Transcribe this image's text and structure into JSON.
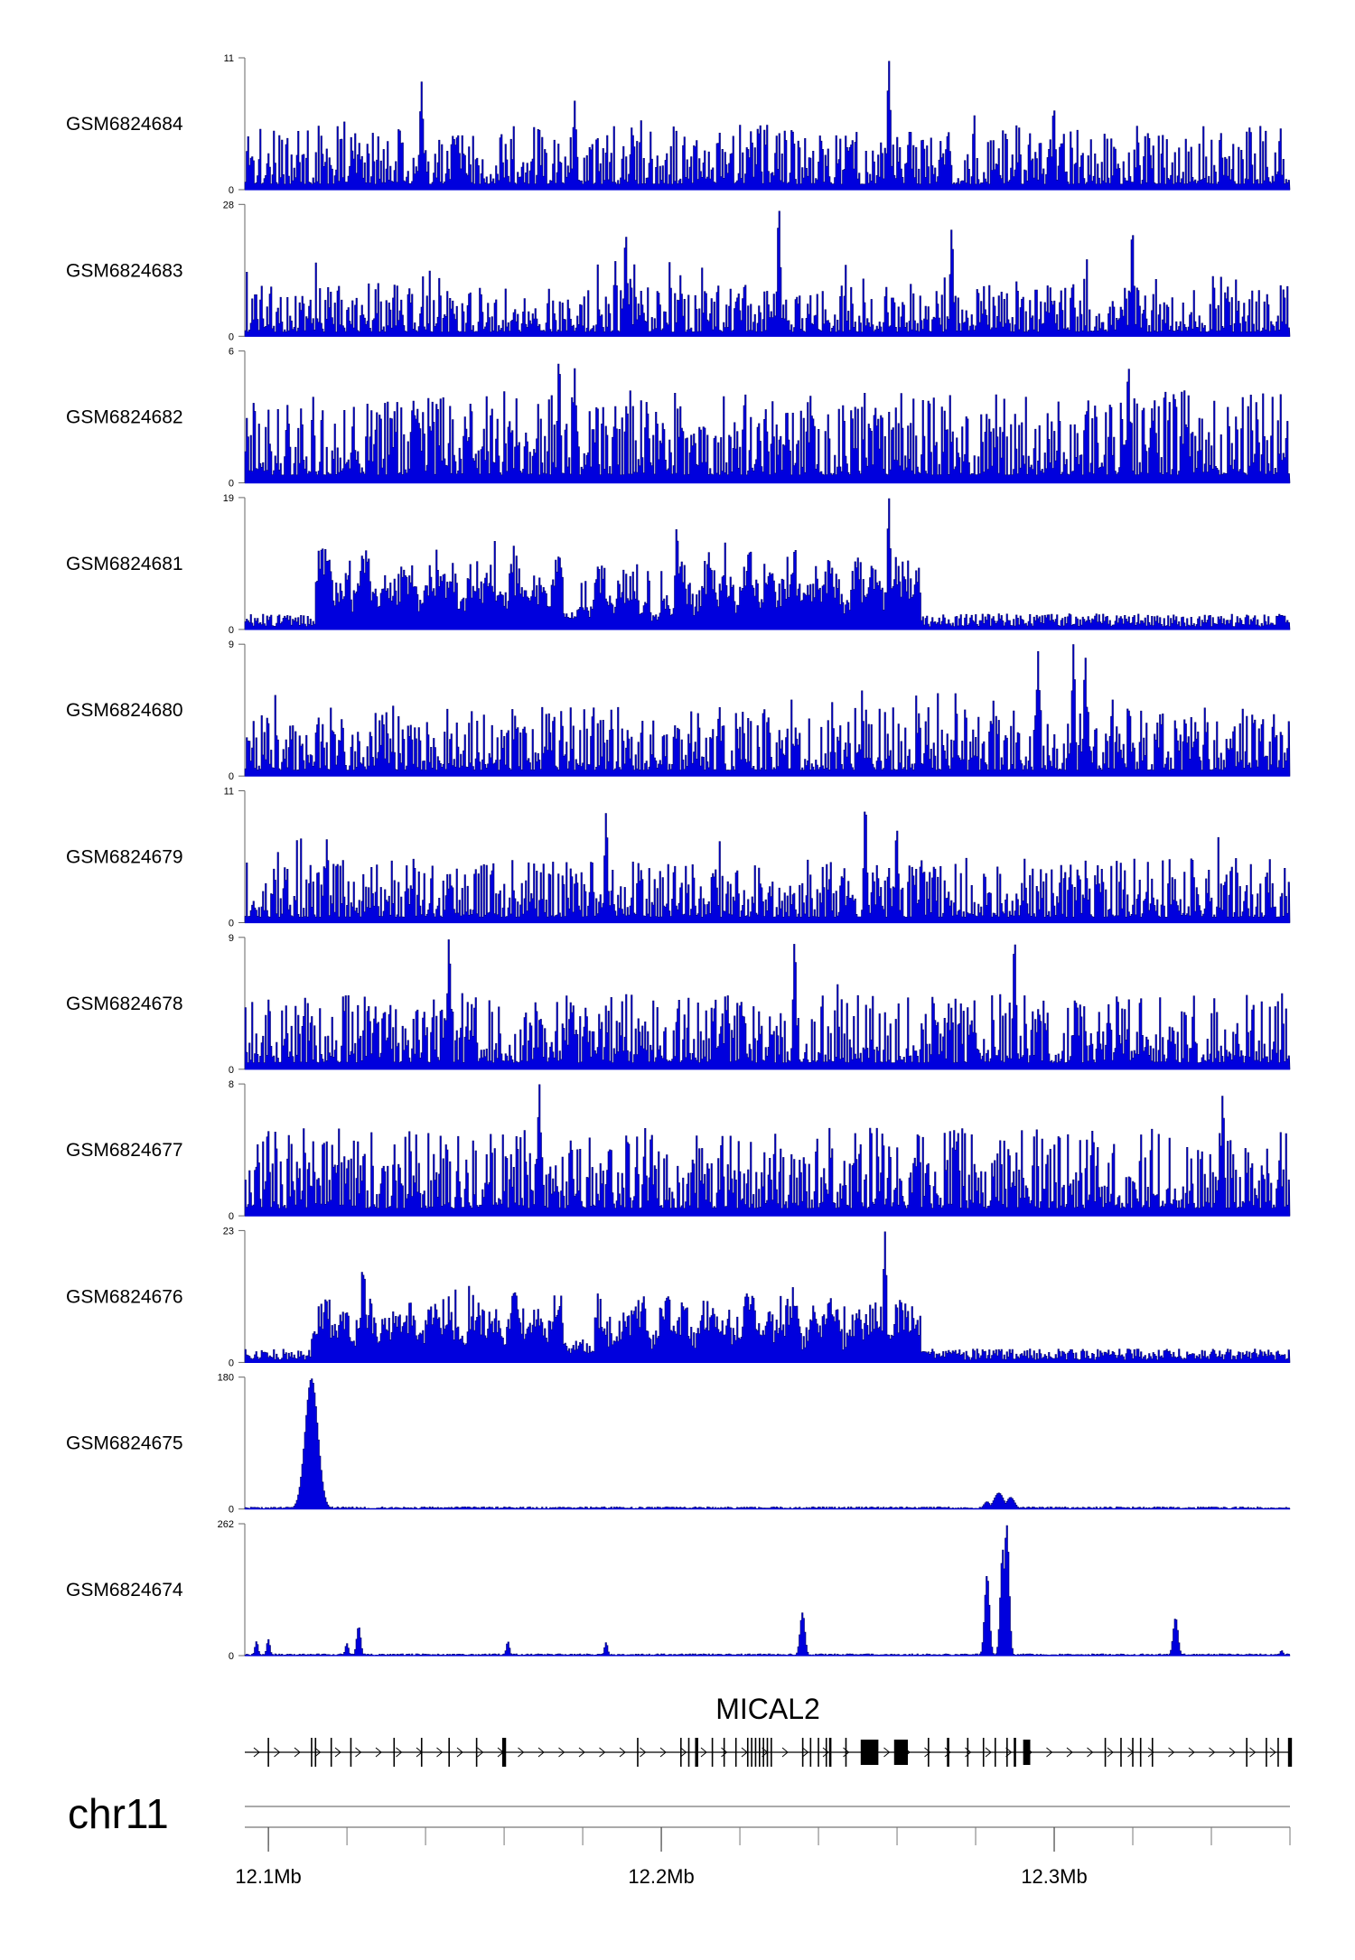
{
  "chart_data": {
    "type": "area",
    "chromosome": "chr11",
    "x_range": [
      12.094,
      12.36
    ],
    "x_unit": "Mb",
    "x_ticks": [
      {
        "value": 12.1,
        "label": "12.1Mb"
      },
      {
        "value": 12.2,
        "label": "12.2Mb"
      },
      {
        "value": 12.3,
        "label": "12.3Mb"
      }
    ],
    "color": "#0000dd",
    "outline_color": "#000066",
    "tracks": [
      {
        "name": "GSM6824684",
        "ymax": 11,
        "ymax_label": "11",
        "ymin_label": "0",
        "pattern": "noise",
        "base": 0.28,
        "spread": 0.35,
        "peaks": [
          {
            "x": 12.139,
            "y": 9.0
          },
          {
            "x": 12.258,
            "y": 10.8
          },
          {
            "x": 12.178,
            "y": 7.4
          },
          {
            "x": 12.3,
            "y": 7.0
          }
        ]
      },
      {
        "name": "GSM6824683",
        "ymax": 28,
        "ymax_label": "28",
        "ymin_label": "0",
        "pattern": "noise",
        "base": 0.22,
        "spread": 0.35,
        "peaks": [
          {
            "x": 12.23,
            "y": 27.5
          },
          {
            "x": 12.191,
            "y": 22.0
          },
          {
            "x": 12.274,
            "y": 23.0
          },
          {
            "x": 12.32,
            "y": 23.0
          }
        ]
      },
      {
        "name": "GSM6824682",
        "ymax": 6,
        "ymax_label": "6",
        "ymin_label": "0",
        "pattern": "noise",
        "base": 0.4,
        "spread": 0.35,
        "peaks": [
          {
            "x": 12.174,
            "y": 5.7
          },
          {
            "x": 12.178,
            "y": 5.2
          },
          {
            "x": 12.319,
            "y": 5.4
          }
        ]
      },
      {
        "name": "GSM6824681",
        "ymax": 19,
        "ymax_label": "19",
        "ymin_label": "0",
        "pattern": "domain",
        "base": 0.07,
        "domain": {
          "start": 12.112,
          "end": 12.266,
          "level": 0.5,
          "dips": [
            {
              "start": 12.175,
              "end": 12.183
            },
            {
              "start": 12.194,
              "end": 12.204
            }
          ]
        },
        "peaks": [
          {
            "x": 12.258,
            "y": 19.0
          },
          {
            "x": 12.204,
            "y": 15.0
          }
        ]
      },
      {
        "name": "GSM6824680",
        "ymax": 9,
        "ymax_label": "9",
        "ymin_label": "0",
        "pattern": "noise",
        "base": 0.3,
        "spread": 0.35,
        "peaks": [
          {
            "x": 12.305,
            "y": 9.0
          },
          {
            "x": 12.308,
            "y": 8.2
          },
          {
            "x": 12.296,
            "y": 8.5
          }
        ]
      },
      {
        "name": "GSM6824679",
        "ymax": 11,
        "ymax_label": "11",
        "ymin_label": "0",
        "pattern": "noise",
        "base": 0.28,
        "spread": 0.35,
        "peaks": [
          {
            "x": 12.186,
            "y": 9.2
          },
          {
            "x": 12.252,
            "y": 10.0
          },
          {
            "x": 12.26,
            "y": 8.0
          }
        ]
      },
      {
        "name": "GSM6824678",
        "ymax": 9,
        "ymax_label": "9",
        "ymin_label": "0",
        "pattern": "noise",
        "base": 0.33,
        "spread": 0.35,
        "peaks": [
          {
            "x": 12.146,
            "y": 9.0
          },
          {
            "x": 12.234,
            "y": 8.8
          },
          {
            "x": 12.29,
            "y": 9.0
          }
        ]
      },
      {
        "name": "GSM6824677",
        "ymax": 8,
        "ymax_label": "8",
        "ymin_label": "0",
        "pattern": "noise",
        "base": 0.38,
        "spread": 0.35,
        "peaks": [
          {
            "x": 12.169,
            "y": 8.0
          },
          {
            "x": 12.343,
            "y": 7.4
          }
        ]
      },
      {
        "name": "GSM6824676",
        "ymax": 23,
        "ymax_label": "23",
        "ymin_label": "0",
        "pattern": "domain",
        "base": 0.06,
        "domain": {
          "start": 12.111,
          "end": 12.266,
          "level": 0.45,
          "dips": [
            {
              "start": 12.175,
              "end": 12.183
            }
          ]
        },
        "peaks": [
          {
            "x": 12.257,
            "y": 22.8
          },
          {
            "x": 12.124,
            "y": 17.0
          }
        ]
      },
      {
        "name": "GSM6824675",
        "ymax": 180,
        "ymax_label": "180",
        "ymin_label": "0",
        "pattern": "sparse",
        "base": 0.012,
        "peaks": [
          {
            "x": 12.111,
            "y": 178,
            "w": 0.0016
          },
          {
            "x": 12.286,
            "y": 22,
            "w": 0.0012
          },
          {
            "x": 12.289,
            "y": 16,
            "w": 0.001
          },
          {
            "x": 12.283,
            "y": 10,
            "w": 0.0008
          }
        ]
      },
      {
        "name": "GSM6824674",
        "ymax": 262,
        "ymax_label": "262",
        "ymin_label": "0",
        "pattern": "sparse",
        "base": 0.01,
        "peaks": [
          {
            "x": 12.288,
            "y": 260,
            "w": 0.0006
          },
          {
            "x": 12.287,
            "y": 210,
            "w": 0.0006
          },
          {
            "x": 12.283,
            "y": 160,
            "w": 0.0006
          },
          {
            "x": 12.236,
            "y": 85,
            "w": 0.0006
          },
          {
            "x": 12.331,
            "y": 75,
            "w": 0.0006
          },
          {
            "x": 12.123,
            "y": 58,
            "w": 0.0005
          },
          {
            "x": 12.1,
            "y": 32,
            "w": 0.0004
          },
          {
            "x": 12.097,
            "y": 28,
            "w": 0.0004
          },
          {
            "x": 12.12,
            "y": 24,
            "w": 0.0004
          },
          {
            "x": 12.161,
            "y": 28,
            "w": 0.0004
          },
          {
            "x": 12.186,
            "y": 26,
            "w": 0.0004
          },
          {
            "x": 12.358,
            "y": 10,
            "w": 0.0004
          }
        ]
      }
    ],
    "gene": {
      "name": "MICAL2",
      "strand": "+",
      "start": 12.094,
      "end": 12.36,
      "exons": [
        {
          "x": 12.1,
          "w": 0.0003
        },
        {
          "x": 12.111,
          "w": 0.0003
        },
        {
          "x": 12.112,
          "w": 0.0003
        },
        {
          "x": 12.116,
          "w": 0.0003
        },
        {
          "x": 12.121,
          "w": 0.0003
        },
        {
          "x": 12.132,
          "w": 0.0003
        },
        {
          "x": 12.139,
          "w": 0.0003
        },
        {
          "x": 12.146,
          "w": 0.0003
        },
        {
          "x": 12.153,
          "w": 0.0003
        },
        {
          "x": 12.16,
          "w": 0.001
        },
        {
          "x": 12.194,
          "w": 0.0003
        },
        {
          "x": 12.205,
          "w": 0.0003
        },
        {
          "x": 12.207,
          "w": 0.0003
        },
        {
          "x": 12.209,
          "w": 0.0008
        },
        {
          "x": 12.213,
          "w": 0.0003
        },
        {
          "x": 12.216,
          "w": 0.0003
        },
        {
          "x": 12.219,
          "w": 0.0003
        },
        {
          "x": 12.222,
          "w": 0.0003
        },
        {
          "x": 12.223,
          "w": 0.0003
        },
        {
          "x": 12.224,
          "w": 0.0003
        },
        {
          "x": 12.225,
          "w": 0.0003
        },
        {
          "x": 12.226,
          "w": 0.0003
        },
        {
          "x": 12.227,
          "w": 0.0003
        },
        {
          "x": 12.228,
          "w": 0.0003
        },
        {
          "x": 12.236,
          "w": 0.0003
        },
        {
          "x": 12.238,
          "w": 0.0003
        },
        {
          "x": 12.24,
          "w": 0.0003
        },
        {
          "x": 12.242,
          "w": 0.0003
        },
        {
          "x": 12.243,
          "w": 0.0006
        },
        {
          "x": 12.247,
          "w": 0.0003
        },
        {
          "x": 12.253,
          "w": 0.0045
        },
        {
          "x": 12.261,
          "w": 0.0035
        },
        {
          "x": 12.268,
          "w": 0.0003
        },
        {
          "x": 12.273,
          "w": 0.0006
        },
        {
          "x": 12.278,
          "w": 0.0003
        },
        {
          "x": 12.282,
          "w": 0.0003
        },
        {
          "x": 12.285,
          "w": 0.0003
        },
        {
          "x": 12.288,
          "w": 0.0003
        },
        {
          "x": 12.29,
          "w": 0.0006
        },
        {
          "x": 12.293,
          "w": 0.0018
        },
        {
          "x": 12.313,
          "w": 0.0003
        },
        {
          "x": 12.317,
          "w": 0.0003
        },
        {
          "x": 12.32,
          "w": 0.0003
        },
        {
          "x": 12.322,
          "w": 0.0003
        },
        {
          "x": 12.325,
          "w": 0.0003
        },
        {
          "x": 12.349,
          "w": 0.0003
        },
        {
          "x": 12.354,
          "w": 0.0003
        },
        {
          "x": 12.357,
          "w": 0.0003
        },
        {
          "x": 12.36,
          "w": 0.001
        }
      ]
    }
  }
}
